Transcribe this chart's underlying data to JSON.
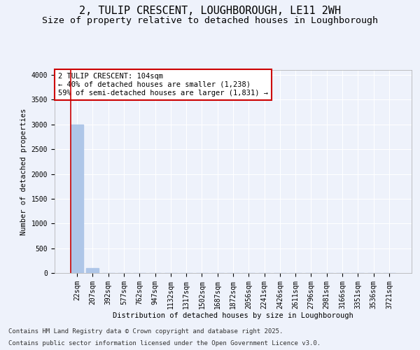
{
  "title_line1": "2, TULIP CRESCENT, LOUGHBOROUGH, LE11 2WH",
  "title_line2": "Size of property relative to detached houses in Loughborough",
  "xlabel": "Distribution of detached houses by size in Loughborough",
  "ylabel": "Number of detached properties",
  "categories": [
    "22sqm",
    "207sqm",
    "392sqm",
    "577sqm",
    "762sqm",
    "947sqm",
    "1132sqm",
    "1317sqm",
    "1502sqm",
    "1687sqm",
    "1872sqm",
    "2056sqm",
    "2241sqm",
    "2426sqm",
    "2611sqm",
    "2796sqm",
    "2981sqm",
    "3166sqm",
    "3351sqm",
    "3536sqm",
    "3721sqm"
  ],
  "values": [
    3000,
    100,
    0,
    0,
    0,
    0,
    0,
    0,
    0,
    0,
    0,
    0,
    0,
    0,
    0,
    0,
    0,
    0,
    0,
    0,
    0
  ],
  "bar_color": "#aec6e8",
  "ylim": [
    0,
    4100
  ],
  "yticks": [
    0,
    500,
    1000,
    1500,
    2000,
    2500,
    3000,
    3500,
    4000
  ],
  "annotation_text": "2 TULIP CRESCENT: 104sqm\n← 40% of detached houses are smaller (1,238)\n59% of semi-detached houses are larger (1,831) →",
  "annotation_box_color": "#ffffff",
  "annotation_box_edgecolor": "#cc0000",
  "footnote1": "Contains HM Land Registry data © Crown copyright and database right 2025.",
  "footnote2": "Contains public sector information licensed under the Open Government Licence v3.0.",
  "bg_color": "#eef2fb",
  "plot_bg_color": "#eef2fb",
  "grid_color": "#ffffff",
  "title_fontsize": 11,
  "subtitle_fontsize": 9.5,
  "axis_label_fontsize": 7.5,
  "tick_fontsize": 7,
  "annotation_fontsize": 7.5,
  "footnote_fontsize": 6.5
}
